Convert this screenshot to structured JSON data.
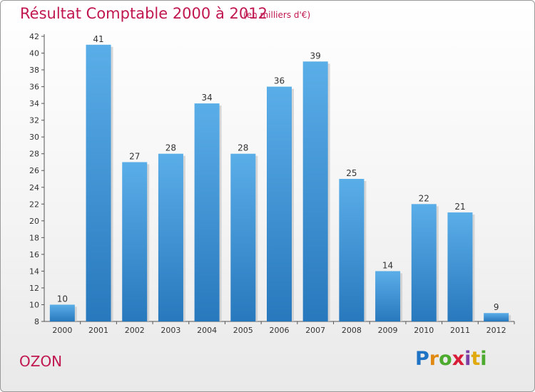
{
  "chart_data": {
    "type": "bar",
    "title": "Résultat Comptable 2000 à 2012",
    "subtitle": "(en milliers d'€)",
    "categories": [
      "2000",
      "2001",
      "2002",
      "2003",
      "2004",
      "2005",
      "2006",
      "2007",
      "2008",
      "2009",
      "2010",
      "2011",
      "2012"
    ],
    "values": [
      10,
      41,
      27,
      28,
      34,
      28,
      36,
      39,
      25,
      14,
      22,
      21,
      9
    ],
    "ylim": [
      8,
      42
    ],
    "yticks": [
      8,
      10,
      12,
      14,
      16,
      18,
      20,
      22,
      24,
      26,
      28,
      30,
      32,
      34,
      36,
      38,
      40,
      42
    ],
    "xlabel": "",
    "ylabel": "",
    "grid": false,
    "bar_color_top": "#5aaee8",
    "bar_color_bottom": "#2878bd"
  },
  "footer": {
    "place": "OZON",
    "logo": {
      "p": "P",
      "r": "r",
      "o": "o",
      "x": "x",
      "i": "i",
      "t": "t",
      "i2": "i"
    }
  }
}
